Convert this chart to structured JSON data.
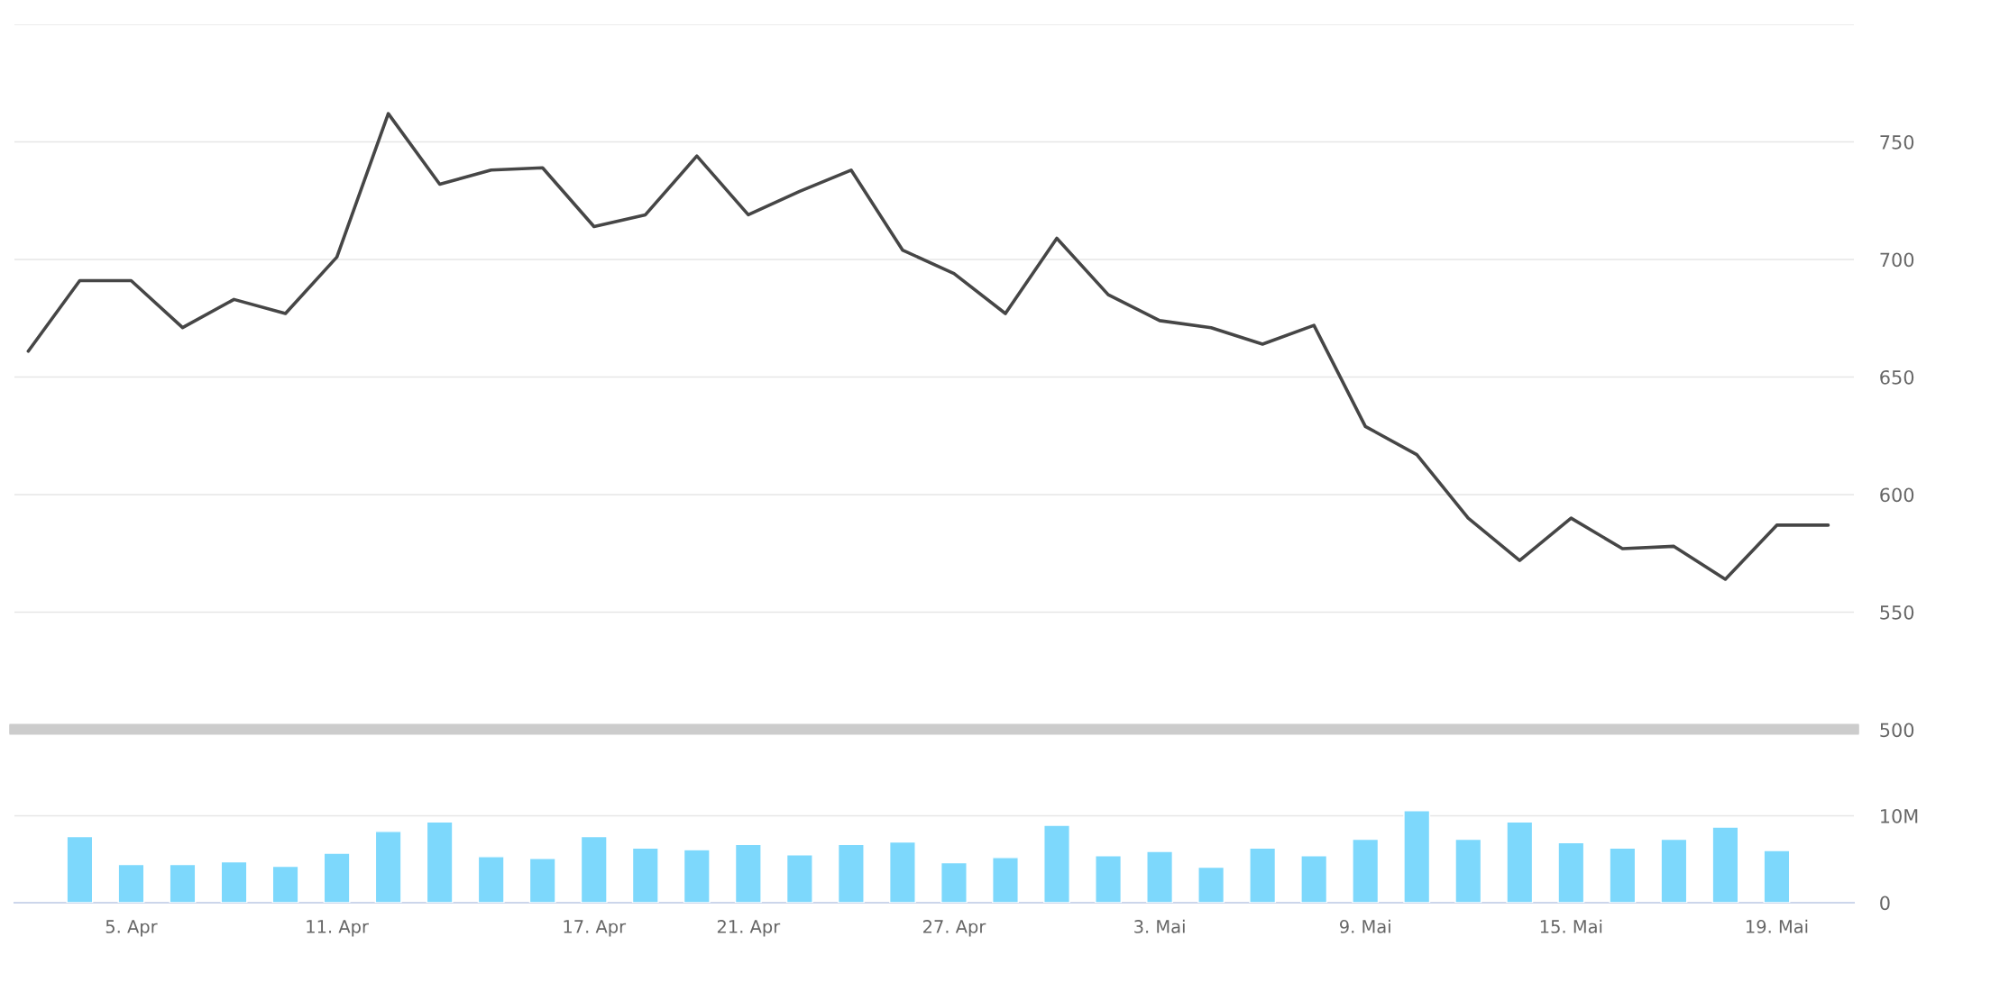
{
  "chart_data": [
    {
      "type": "line",
      "categories": [
        null,
        null,
        null,
        null,
        null,
        null,
        null,
        null,
        null,
        null,
        null,
        null,
        null,
        null,
        null,
        null,
        null,
        null,
        null,
        null,
        null,
        null,
        null,
        null,
        null,
        null,
        null,
        null,
        null,
        null,
        null,
        null,
        null,
        null,
        null,
        null
      ],
      "series": [
        {
          "color": "#464646",
          "values": [
            661,
            691,
            691,
            671,
            683,
            677,
            701,
            762,
            732,
            738,
            739,
            714,
            719,
            744,
            719,
            729,
            738,
            704,
            694,
            677,
            709,
            685,
            674,
            671,
            664,
            672,
            629,
            617,
            590,
            572,
            590,
            577,
            578,
            564,
            587,
            587
          ]
        }
      ],
      "ylim": [
        500,
        800
      ],
      "yticks": [
        500,
        550,
        600,
        650,
        700,
        750,
        {
          "value": 800,
          "label": null
        }
      ],
      "grid": "y",
      "tick_labels": "y",
      "line_style": "solid",
      "marker": "none"
    },
    {
      "type": "bar",
      "categories": [
        null,
        null,
        "5. Apr",
        null,
        null,
        null,
        "11. Apr",
        null,
        null,
        null,
        null,
        "17. Apr",
        null,
        null,
        "21. Apr",
        null,
        null,
        null,
        "27. Apr",
        null,
        null,
        null,
        "3. Mai",
        null,
        null,
        null,
        "9. Mai",
        null,
        null,
        null,
        "15. Mai",
        null,
        null,
        null,
        "19. Mai",
        null
      ],
      "series": [
        {
          "color": "#7dd8fc",
          "values": [
            null,
            7.6,
            4.4,
            4.4,
            4.7,
            4.2,
            5.7,
            8.2,
            9.3,
            5.3,
            5.1,
            7.6,
            6.3,
            6.1,
            6.7,
            5.5,
            6.7,
            7.0,
            4.6,
            5.2,
            8.9,
            5.4,
            5.9,
            4.1,
            6.3,
            5.4,
            7.3,
            10.6,
            7.3,
            9.3,
            6.9,
            6.3,
            7.3,
            8.7,
            6.0,
            null
          ]
        }
      ],
      "ylim": [
        0,
        20
      ],
      "yticks": [
        0,
        {
          "value": 10,
          "label": "10M"
        }
      ],
      "grid": "y"
    }
  ]
}
